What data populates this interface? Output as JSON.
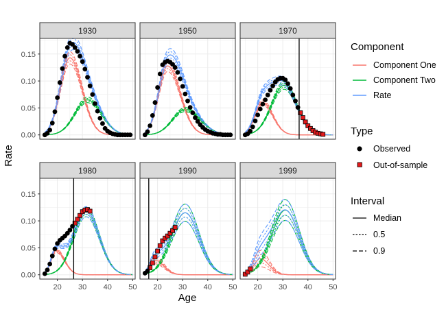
{
  "chart_data": {
    "type": "line",
    "xlabel": "Age",
    "ylabel": "Rate",
    "xlim": [
      13,
      51
    ],
    "ylim": [
      -0.008,
      0.179
    ],
    "x_ticks": [
      20,
      30,
      40,
      50
    ],
    "y_ticks": [
      0.0,
      0.05,
      0.1,
      0.15
    ],
    "y_tick_labels": [
      "0.00",
      "0.05",
      "0.10",
      "0.15"
    ],
    "colors": {
      "component_one": "#F8766D",
      "component_two": "#00BA38",
      "rate": "#619CFF",
      "observed": "#000000",
      "out_of_sample": "#E41A1C",
      "strip_fill": "#D9D9D9",
      "grid": "#EBEBEB"
    },
    "legend": {
      "placement": "right",
      "component": {
        "title": "Component",
        "items": [
          "Component One",
          "Component Two",
          "Rate"
        ]
      },
      "type": {
        "title": "Type",
        "items": [
          "Observed",
          "Out-of-sample"
        ]
      },
      "interval": {
        "title": "Interval",
        "items": [
          "Median",
          "0.5",
          "0.9"
        ]
      }
    },
    "panels": [
      {
        "label": "1930",
        "cutoff": null,
        "c1": {
          "peak": 0.143,
          "center": 25,
          "sl": 3.8,
          "sr": 4.8,
          "spread": 0.08
        },
        "c2": {
          "peak": 0.065,
          "center": 32,
          "sl": 5.0,
          "sr": 5.5,
          "spread": 0.08
        },
        "observed": [
          [
            15,
            0.0
          ],
          [
            16,
            0.003
          ],
          [
            17,
            0.009
          ],
          [
            18,
            0.022
          ],
          [
            19,
            0.043
          ],
          [
            20,
            0.069
          ],
          [
            21,
            0.097
          ],
          [
            22,
            0.123
          ],
          [
            23,
            0.146
          ],
          [
            24,
            0.162
          ],
          [
            25,
            0.17
          ],
          [
            26,
            0.168
          ],
          [
            27,
            0.162
          ],
          [
            28,
            0.155
          ],
          [
            29,
            0.146
          ],
          [
            30,
            0.136
          ],
          [
            31,
            0.122
          ],
          [
            32,
            0.107
          ],
          [
            33,
            0.091
          ],
          [
            34,
            0.075
          ],
          [
            35,
            0.058
          ],
          [
            36,
            0.044
          ],
          [
            37,
            0.031
          ],
          [
            38,
            0.021
          ],
          [
            39,
            0.012
          ],
          [
            40,
            0.007
          ],
          [
            41,
            0.004
          ],
          [
            42,
            0.002
          ],
          [
            43,
            0.001
          ],
          [
            44,
            0.0
          ],
          [
            45,
            0.0
          ],
          [
            46,
            0.0
          ],
          [
            47,
            0.0
          ],
          [
            48,
            0.0
          ],
          [
            49,
            0.0
          ]
        ],
        "out_of_sample": []
      },
      {
        "label": "1950",
        "cutoff": null,
        "c1": {
          "peak": 0.128,
          "center": 24,
          "sl": 3.5,
          "sr": 5.0,
          "spread": 0.08
        },
        "c2": {
          "peak": 0.047,
          "center": 31,
          "sl": 5.0,
          "sr": 6.0,
          "spread": 0.08
        },
        "observed": [
          [
            15,
            0.0
          ],
          [
            16,
            0.006
          ],
          [
            17,
            0.017
          ],
          [
            18,
            0.036
          ],
          [
            19,
            0.06
          ],
          [
            20,
            0.088
          ],
          [
            21,
            0.113
          ],
          [
            22,
            0.13
          ],
          [
            23,
            0.135
          ],
          [
            24,
            0.137
          ],
          [
            25,
            0.135
          ],
          [
            26,
            0.131
          ],
          [
            27,
            0.125
          ],
          [
            28,
            0.116
          ],
          [
            29,
            0.104
          ],
          [
            30,
            0.09
          ],
          [
            31,
            0.076
          ],
          [
            32,
            0.063
          ],
          [
            33,
            0.051
          ],
          [
            34,
            0.041
          ],
          [
            35,
            0.032
          ],
          [
            36,
            0.025
          ],
          [
            37,
            0.019
          ],
          [
            38,
            0.014
          ],
          [
            39,
            0.01
          ],
          [
            40,
            0.007
          ],
          [
            41,
            0.005
          ],
          [
            42,
            0.003
          ],
          [
            43,
            0.002
          ],
          [
            44,
            0.001
          ],
          [
            45,
            0.001
          ],
          [
            46,
            0.0
          ],
          [
            47,
            0.0
          ],
          [
            48,
            0.0
          ],
          [
            49,
            0.0
          ]
        ],
        "out_of_sample": []
      },
      {
        "label": "1970",
        "cutoff": 36.5,
        "c1": {
          "peak": 0.06,
          "center": 22,
          "sl": 3.0,
          "sr": 4.0,
          "spread": 0.08
        },
        "c2": {
          "peak": 0.092,
          "center": 30.5,
          "sl": 5.0,
          "sr": 5.0,
          "spread": 0.08
        },
        "observed": [
          [
            15,
            0.0
          ],
          [
            16,
            0.002
          ],
          [
            17,
            0.007
          ],
          [
            18,
            0.015
          ],
          [
            19,
            0.026
          ],
          [
            20,
            0.037
          ],
          [
            21,
            0.048
          ],
          [
            22,
            0.057
          ],
          [
            23,
            0.065
          ],
          [
            24,
            0.074
          ],
          [
            25,
            0.083
          ],
          [
            26,
            0.091
          ],
          [
            27,
            0.098
          ],
          [
            28,
            0.103
          ],
          [
            29,
            0.105
          ],
          [
            30,
            0.105
          ],
          [
            31,
            0.102
          ],
          [
            32,
            0.095
          ],
          [
            33,
            0.086
          ],
          [
            34,
            0.074
          ],
          [
            35,
            0.063
          ],
          [
            36,
            0.051
          ]
        ],
        "out_of_sample": [
          [
            37,
            0.041
          ],
          [
            38,
            0.032
          ],
          [
            39,
            0.024
          ],
          [
            40,
            0.017
          ],
          [
            41,
            0.012
          ],
          [
            42,
            0.008
          ],
          [
            43,
            0.005
          ],
          [
            44,
            0.003
          ],
          [
            45,
            0.002
          ],
          [
            46,
            0.001
          ]
        ]
      },
      {
        "label": "1980",
        "cutoff": 26.5,
        "c1": {
          "peak": 0.045,
          "center": 19.5,
          "sl": 2.0,
          "sr": 3.3,
          "spread": 0.08
        },
        "c2": {
          "peak": 0.117,
          "center": 31.5,
          "sl": 5.0,
          "sr": 5.2,
          "spread": 0.08
        },
        "observed": [
          [
            15,
            0.002
          ],
          [
            16,
            0.009
          ],
          [
            17,
            0.02
          ],
          [
            18,
            0.035
          ],
          [
            19,
            0.048
          ],
          [
            20,
            0.058
          ],
          [
            21,
            0.064
          ],
          [
            22,
            0.068
          ],
          [
            23,
            0.072
          ],
          [
            24,
            0.077
          ],
          [
            25,
            0.083
          ],
          [
            26,
            0.09
          ]
        ],
        "out_of_sample": [
          [
            27,
            0.096
          ],
          [
            28,
            0.103
          ],
          [
            29,
            0.11
          ],
          [
            30,
            0.117
          ],
          [
            31,
            0.12
          ],
          [
            32,
            0.121
          ],
          [
            33,
            0.118
          ]
        ]
      },
      {
        "label": "1990",
        "cutoff": 16.5,
        "c1": {
          "peak": 0.027,
          "center": 19,
          "sl": 2.0,
          "sr": 3.5,
          "spread": 0.25
        },
        "c2": {
          "peak": 0.115,
          "center": 31,
          "sl": 5.5,
          "sr": 5.5,
          "spread": 0.14
        },
        "observed": [
          [
            15,
            0.003
          ],
          [
            16,
            0.007
          ]
        ],
        "out_of_sample": [
          [
            17,
            0.013
          ],
          [
            18,
            0.022
          ],
          [
            19,
            0.033
          ],
          [
            20,
            0.044
          ],
          [
            21,
            0.054
          ],
          [
            22,
            0.063
          ],
          [
            23,
            0.068
          ],
          [
            24,
            0.072
          ],
          [
            25,
            0.077
          ],
          [
            26,
            0.082
          ],
          [
            27,
            0.088
          ]
        ]
      },
      {
        "label": "1999",
        "cutoff": null,
        "c1": {
          "peak": 0.03,
          "center": 21,
          "sl": 2.5,
          "sr": 3.5,
          "spread": 0.5
        },
        "c2": {
          "peak": 0.12,
          "center": 31,
          "sl": 5.5,
          "sr": 5.5,
          "spread": 0.16
        },
        "observed": [],
        "out_of_sample": [
          [
            15,
            0.001
          ],
          [
            16,
            0.005
          ],
          [
            17,
            0.011
          ]
        ]
      }
    ]
  }
}
